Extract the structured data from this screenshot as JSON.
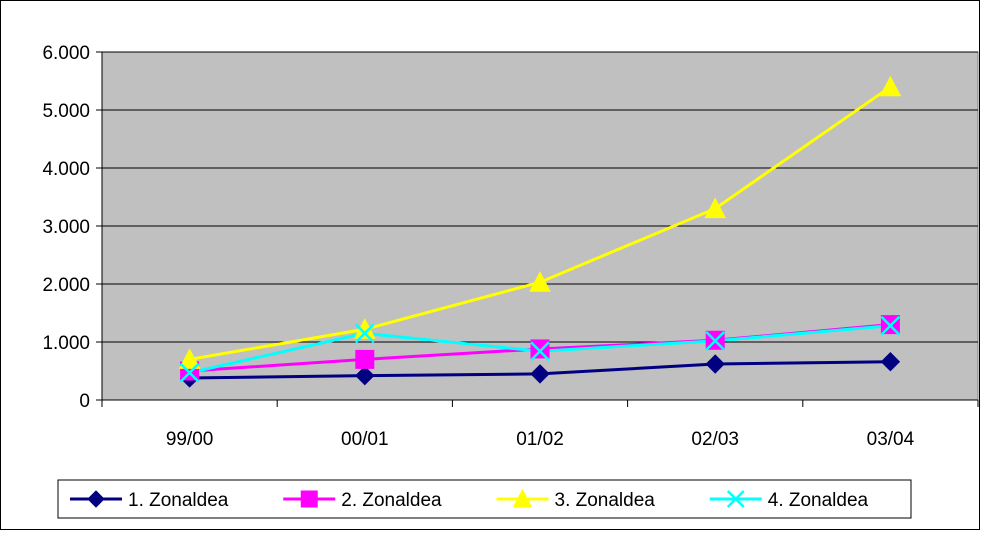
{
  "chart_data": {
    "type": "line",
    "title": "",
    "xlabel": "",
    "ylabel": "",
    "categories": [
      "99/00",
      "00/01",
      "01/02",
      "02/03",
      "03/04"
    ],
    "ylim": [
      0,
      6000
    ],
    "y_ticks": [
      0,
      1000,
      2000,
      3000,
      4000,
      5000,
      6000
    ],
    "y_tick_labels": [
      "0",
      "1.000",
      "2.000",
      "3.000",
      "4.000",
      "5.000",
      "6.000"
    ],
    "grid": "horizontal",
    "plot_background": "#c0c0c0",
    "legend_position": "bottom",
    "series": [
      {
        "name": "1. Zonaldea",
        "color": "#000080",
        "marker": "diamond",
        "values": [
          380,
          420,
          450,
          620,
          660
        ]
      },
      {
        "name": "2. Zonaldea",
        "color": "#ff00ff",
        "marker": "square",
        "values": [
          500,
          700,
          880,
          1030,
          1300
        ]
      },
      {
        "name": "3. Zonaldea",
        "color": "#ffff00",
        "marker": "triangle",
        "values": [
          700,
          1220,
          2030,
          3300,
          5400
        ]
      },
      {
        "name": "4. Zonaldea",
        "color": "#00ffff",
        "marker": "x",
        "values": [
          470,
          1150,
          840,
          1020,
          1280
        ]
      }
    ]
  }
}
